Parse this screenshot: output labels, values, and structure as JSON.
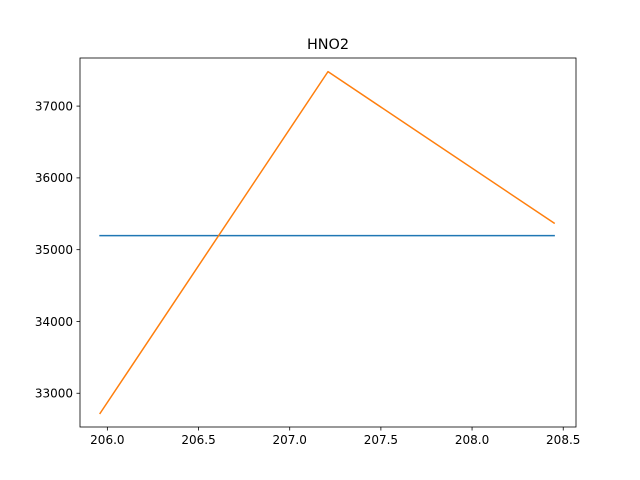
{
  "chart_data": {
    "type": "line",
    "title": "HNO2",
    "xlabel": "",
    "ylabel": "",
    "xlim": [
      205.85,
      208.57
    ],
    "ylim": [
      32530,
      37670
    ],
    "grid": false,
    "legend": "none",
    "x_ticks": [
      206.0,
      206.5,
      207.0,
      207.5,
      208.0,
      208.5
    ],
    "x_tick_labels": [
      "206.0",
      "206.5",
      "207.0",
      "207.5",
      "208.0",
      "208.5"
    ],
    "y_ticks": [
      33000,
      34000,
      35000,
      36000,
      37000
    ],
    "y_tick_labels": [
      "33000",
      "34000",
      "35000",
      "36000",
      "37000"
    ],
    "series": [
      {
        "color": "#1f77b4",
        "x": [
          205.96,
          208.45
        ],
        "y": [
          35195,
          35195
        ]
      },
      {
        "color": "#ff7f0e",
        "x": [
          205.96,
          207.21,
          208.45
        ],
        "y": [
          32720,
          37480,
          35370
        ]
      }
    ]
  }
}
